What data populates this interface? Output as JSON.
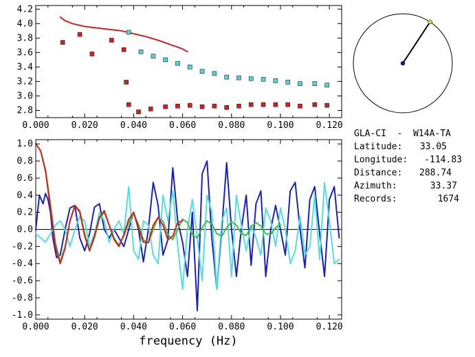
{
  "station_info": {
    "pair": "GLA-CI  -  W14A-TA",
    "rows": [
      {
        "label": "Latitude:",
        "value": "33.05"
      },
      {
        "label": "Longitude:",
        "value": "-114.83"
      },
      {
        "label": "Distance:",
        "value": "288.74"
      },
      {
        "label": "Azimuth:",
        "value": "33.37"
      },
      {
        "label": "Records:",
        "value": "1674"
      }
    ]
  },
  "azimuth_compass": {
    "azimuth_deg": 33.37,
    "center_color": "#1a1a80",
    "tip_color": "#d8d830"
  },
  "chart_data": [
    {
      "type": "scatter",
      "title": "",
      "xlabel": "",
      "ylabel": "",
      "xlim": [
        0.0,
        0.125
      ],
      "ylim": [
        2.7,
        4.25
      ],
      "xticks": [
        "0.000",
        "0.020",
        "0.040",
        "0.060",
        "0.080",
        "0.100",
        "0.120"
      ],
      "yticks": [
        "2.8",
        "3.0",
        "3.2",
        "3.4",
        "3.6",
        "3.8",
        "4.0",
        "4.2"
      ],
      "series": [
        {
          "kind": "line",
          "color": "#d42020",
          "x": [
            0.01,
            0.012,
            0.015,
            0.02,
            0.025,
            0.03,
            0.035,
            0.04,
            0.045,
            0.05,
            0.055,
            0.06,
            0.062
          ],
          "y": [
            4.09,
            4.04,
            4.0,
            3.96,
            3.94,
            3.92,
            3.9,
            3.86,
            3.82,
            3.77,
            3.71,
            3.65,
            3.61
          ]
        },
        {
          "kind": "markers",
          "color": "#50d8d8",
          "x": [
            0.038,
            0.043,
            0.048,
            0.053,
            0.058,
            0.063,
            0.068,
            0.073,
            0.078,
            0.083,
            0.088,
            0.093,
            0.098,
            0.103,
            0.108,
            0.114,
            0.119
          ],
          "y": [
            3.88,
            3.61,
            3.55,
            3.5,
            3.45,
            3.4,
            3.34,
            3.31,
            3.26,
            3.25,
            3.24,
            3.23,
            3.21,
            3.19,
            3.17,
            3.17,
            3.15
          ]
        },
        {
          "kind": "markers",
          "color": "#d02020",
          "x": [
            0.011,
            0.018,
            0.023,
            0.031,
            0.036,
            0.037,
            0.038,
            0.042,
            0.047,
            0.053,
            0.058,
            0.063,
            0.068,
            0.073,
            0.078,
            0.083,
            0.088,
            0.093,
            0.098,
            0.103,
            0.108,
            0.114,
            0.119
          ],
          "y": [
            3.74,
            3.85,
            3.58,
            3.77,
            3.64,
            3.19,
            2.88,
            2.78,
            2.82,
            2.85,
            2.86,
            2.87,
            2.85,
            2.86,
            2.84,
            2.86,
            2.88,
            2.88,
            2.88,
            2.88,
            2.86,
            2.88,
            2.87
          ]
        }
      ]
    },
    {
      "type": "line",
      "title": "",
      "xlabel": "frequency (Hz)",
      "ylabel": "",
      "xlim": [
        0.0,
        0.125
      ],
      "ylim": [
        -1.05,
        1.05
      ],
      "xticks": [
        "0.000",
        "0.020",
        "0.040",
        "0.060",
        "0.080",
        "0.100",
        "0.120"
      ],
      "yticks": [
        "1.0",
        "0.8",
        "0.6",
        "0.4",
        "0.2",
        "0.0",
        "-0.2",
        "-0.4",
        "-0.6",
        "-0.8",
        "-1.0"
      ],
      "zero_line": true,
      "series": [
        {
          "color": "#1820c0",
          "x": [
            0.0,
            0.0015,
            0.003,
            0.004,
            0.005,
            0.006,
            0.007,
            0.0085,
            0.01,
            0.012,
            0.014,
            0.016,
            0.018,
            0.02,
            0.022,
            0.024,
            0.026,
            0.028,
            0.03,
            0.032,
            0.034,
            0.036,
            0.038,
            0.04,
            0.042,
            0.044,
            0.046,
            0.048,
            0.05,
            0.052,
            0.054,
            0.056,
            0.058,
            0.06,
            0.062,
            0.064,
            0.066,
            0.068,
            0.07,
            0.072,
            0.074,
            0.076,
            0.078,
            0.08,
            0.082,
            0.084,
            0.086,
            0.088,
            0.09,
            0.092,
            0.094,
            0.096,
            0.098,
            0.1,
            0.102,
            0.104,
            0.106,
            0.108,
            0.11,
            0.112,
            0.114,
            0.116,
            0.118,
            0.12,
            0.122,
            0.124
          ],
          "y": [
            0.0,
            0.4,
            0.3,
            0.42,
            0.35,
            0.2,
            -0.1,
            -0.33,
            -0.3,
            0.0,
            0.25,
            0.28,
            -0.1,
            -0.25,
            -0.05,
            0.26,
            0.3,
            0.0,
            -0.1,
            0.0,
            -0.1,
            -0.2,
            0.0,
            0.2,
            0.0,
            -0.38,
            0.0,
            0.55,
            0.28,
            -0.3,
            -0.12,
            0.72,
            0.1,
            -0.15,
            -0.55,
            0.2,
            -0.95,
            0.65,
            0.8,
            -0.12,
            -0.7,
            0.0,
            0.78,
            0.0,
            -0.55,
            0.0,
            0.4,
            -0.42,
            0.3,
            0.45,
            -0.55,
            0.0,
            0.28,
            0.0,
            -0.3,
            0.45,
            0.55,
            0.0,
            -0.45,
            0.35,
            0.5,
            -0.05,
            -0.55,
            0.35,
            0.5,
            -0.1
          ]
        },
        {
          "color": "#50e0e0",
          "x": [
            0.0,
            0.002,
            0.004,
            0.006,
            0.008,
            0.01,
            0.012,
            0.014,
            0.016,
            0.018,
            0.02,
            0.022,
            0.024,
            0.026,
            0.028,
            0.03,
            0.032,
            0.034,
            0.036,
            0.038,
            0.04,
            0.042,
            0.044,
            0.046,
            0.048,
            0.05,
            0.052,
            0.054,
            0.056,
            0.058,
            0.06,
            0.062,
            0.064,
            0.066,
            0.068,
            0.07,
            0.072,
            0.074,
            0.076,
            0.078,
            0.08,
            0.082,
            0.084,
            0.086,
            0.088,
            0.09,
            0.092,
            0.094,
            0.096,
            0.098,
            0.1,
            0.102,
            0.104,
            0.106,
            0.108,
            0.11,
            0.112,
            0.114,
            0.116,
            0.118,
            0.12,
            0.122,
            0.124
          ],
          "y": [
            -0.05,
            -0.1,
            -0.15,
            -0.05,
            0.05,
            0.1,
            0.0,
            -0.2,
            0.0,
            0.15,
            0.1,
            -0.2,
            -0.05,
            0.2,
            0.1,
            -0.15,
            0.0,
            0.1,
            -0.05,
            0.5,
            -0.25,
            -0.35,
            0.1,
            0.05,
            -0.3,
            -0.4,
            0.4,
            0.1,
            0.45,
            -0.2,
            -0.7,
            0.0,
            0.35,
            -0.1,
            -0.6,
            0.4,
            0.2,
            -0.7,
            0.1,
            0.25,
            -0.55,
            0.4,
            0.05,
            -0.25,
            0.05,
            -0.1,
            -0.3,
            0.25,
            0.1,
            -0.2,
            0.25,
            0.0,
            -0.4,
            -0.25,
            0.15,
            -0.3,
            -0.2,
            0.4,
            -0.35,
            0.55,
            0.1,
            -0.4,
            -0.35
          ]
        },
        {
          "color": "#40c040",
          "x": [
            0.0,
            0.002,
            0.004,
            0.006,
            0.008,
            0.01,
            0.012,
            0.014,
            0.016,
            0.018,
            0.02,
            0.022,
            0.024,
            0.026,
            0.028,
            0.03,
            0.032,
            0.034,
            0.036,
            0.038,
            0.04,
            0.042,
            0.044,
            0.046,
            0.048,
            0.05,
            0.052,
            0.054,
            0.056,
            0.058,
            0.06,
            0.062,
            0.064,
            0.066,
            0.068,
            0.07,
            0.072,
            0.074,
            0.076,
            0.078,
            0.08,
            0.082,
            0.084,
            0.086,
            0.088,
            0.09,
            0.092,
            0.094,
            0.096,
            0.098,
            0.1
          ],
          "y": [
            1.0,
            0.92,
            0.7,
            0.3,
            -0.15,
            -0.38,
            -0.2,
            0.1,
            0.28,
            0.22,
            -0.05,
            -0.25,
            -0.1,
            0.12,
            0.2,
            0.05,
            -0.1,
            -0.18,
            -0.08,
            0.08,
            0.18,
            0.06,
            -0.12,
            -0.16,
            0.0,
            0.14,
            0.1,
            -0.06,
            -0.12,
            0.0,
            0.12,
            0.08,
            -0.06,
            -0.1,
            0.02,
            0.1,
            0.06,
            -0.05,
            -0.08,
            0.02,
            0.09,
            0.05,
            -0.05,
            -0.07,
            0.03,
            0.08,
            0.04,
            -0.05,
            -0.06,
            0.02,
            0.06
          ]
        },
        {
          "color": "#d42020",
          "x": [
            0.0,
            0.002,
            0.004,
            0.006,
            0.008,
            0.01,
            0.012,
            0.014,
            0.016,
            0.018,
            0.02,
            0.022,
            0.024,
            0.026,
            0.028,
            0.03,
            0.032,
            0.034,
            0.036,
            0.038,
            0.04,
            0.042,
            0.044,
            0.046,
            0.048,
            0.05,
            0.052,
            0.054,
            0.056,
            0.058,
            0.06
          ],
          "y": [
            1.0,
            0.92,
            0.68,
            0.25,
            -0.2,
            -0.4,
            -0.22,
            0.1,
            0.28,
            0.2,
            -0.08,
            -0.25,
            -0.08,
            0.14,
            0.22,
            0.05,
            -0.12,
            -0.2,
            -0.06,
            0.12,
            0.2,
            0.02,
            -0.15,
            -0.15,
            0.05,
            0.14,
            0.05,
            -0.12,
            -0.08,
            0.08,
            0.1
          ]
        }
      ]
    }
  ]
}
